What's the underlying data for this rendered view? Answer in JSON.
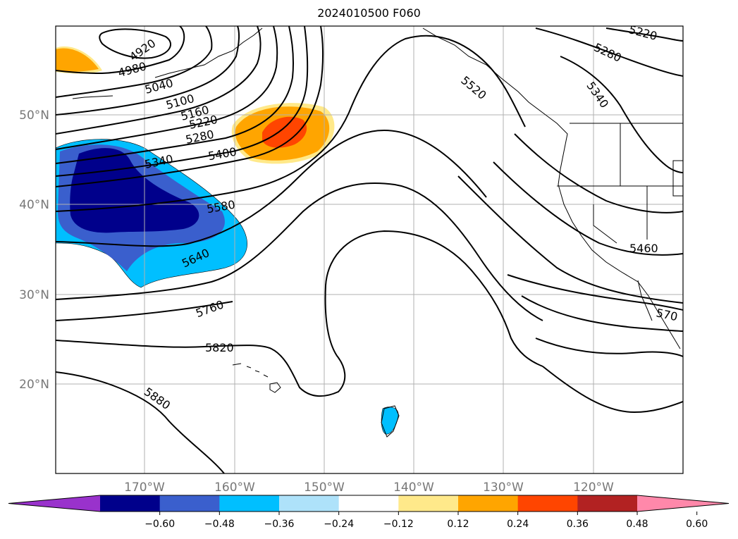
{
  "title": "2024010500 F060",
  "lat_labels": [
    "50°N",
    "40°N",
    "30°N",
    "20°N"
  ],
  "lon_labels": [
    "170°W",
    "160°W",
    "150°W",
    "140°W",
    "130°W",
    "120°W"
  ],
  "contour_labels": [
    "4920",
    "4980",
    "5040",
    "5100",
    "5160",
    "5220",
    "5280",
    "5340",
    "5400",
    "5580",
    "5640",
    "5760",
    "5820",
    "5880",
    "5520",
    "5460",
    "570",
    "5220",
    "5280",
    "5340"
  ],
  "colorbar": {
    "tick_labels": [
      "−0.60",
      "−0.48",
      "−0.36",
      "−0.24",
      "−0.12",
      "0.12",
      "0.24",
      "0.36",
      "0.48",
      "0.60"
    ],
    "colors": [
      "#9932cc",
      "#00008b",
      "#3a5fcd",
      "#00bfff",
      "#aee2fa",
      "#ffffff",
      "#ffe98a",
      "#ffa500",
      "#ff4500",
      "#b22222",
      "#ff88aa"
    ]
  }
}
